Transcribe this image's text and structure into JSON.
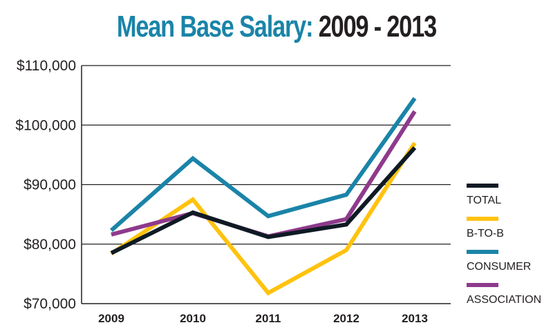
{
  "chart_data": {
    "type": "line",
    "title_part1": "Mean Base Salary:",
    "title_part2": "2009 - 2013",
    "categories": [
      "2009",
      "2010",
      "2011",
      "2012",
      "2013"
    ],
    "ylim": [
      70000,
      110000
    ],
    "yticks": [
      70000,
      80000,
      90000,
      100000,
      110000
    ],
    "ytick_labels": [
      "$70,000",
      "$80,000",
      "$90,000",
      "$100,000",
      "$110,000"
    ],
    "gridlines": [
      80000,
      90000,
      100000,
      110000
    ],
    "series": [
      {
        "key": "total",
        "name": "TOTAL",
        "color": "#0f1a24",
        "values": [
          78500,
          85300,
          81200,
          83300,
          96200
        ]
      },
      {
        "key": "btob",
        "name": "B-TO-B",
        "color": "#ffc20e",
        "values": [
          78400,
          87500,
          71800,
          79000,
          97000
        ]
      },
      {
        "key": "consumer",
        "name": "CONSUMER",
        "color": "#1a84a8",
        "values": [
          82300,
          94400,
          84700,
          88300,
          104500
        ]
      },
      {
        "key": "association",
        "name": "ASSOCIATION",
        "color": "#8e3a8c",
        "values": [
          81600,
          85200,
          81300,
          84200,
          102300
        ]
      }
    ],
    "draw_order": [
      "btob",
      "consumer",
      "association",
      "total"
    ],
    "legend_position": "right"
  }
}
